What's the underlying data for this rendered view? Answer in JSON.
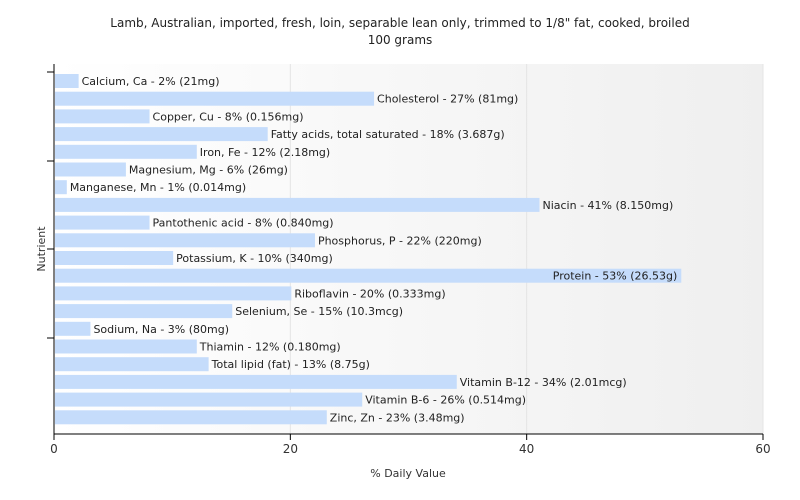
{
  "chart_data": {
    "type": "bar",
    "orientation": "horizontal",
    "title": "Lamb, Australian, imported, fresh, loin, separable lean only, trimmed to 1/8\" fat, cooked, broiled",
    "subtitle": "100 grams",
    "xlabel": "% Daily Value",
    "ylabel": "Nutrient",
    "xlim": [
      0,
      60
    ],
    "xticks": [
      "0",
      "20",
      "40",
      "60"
    ],
    "grid": true,
    "bar_color": "#c5dcfb",
    "categories": [
      "Calcium, Ca",
      "Cholesterol",
      "Copper, Cu",
      "Fatty acids, total saturated",
      "Iron, Fe",
      "Magnesium, Mg",
      "Manganese, Mn",
      "Niacin",
      "Pantothenic acid",
      "Phosphorus, P",
      "Potassium, K",
      "Protein",
      "Riboflavin",
      "Selenium, Se",
      "Sodium, Na",
      "Thiamin",
      "Total lipid (fat)",
      "Vitamin B-12",
      "Vitamin B-6",
      "Zinc, Zn"
    ],
    "values": [
      2,
      27,
      8,
      18,
      12,
      6,
      1,
      41,
      8,
      22,
      10,
      53,
      20,
      15,
      3,
      12,
      13,
      34,
      26,
      23
    ],
    "labels": [
      "Calcium, Ca - 2% (21mg)",
      "Cholesterol - 27% (81mg)",
      "Copper, Cu - 8% (0.156mg)",
      "Fatty acids, total saturated - 18% (3.687g)",
      "Iron, Fe - 12% (2.18mg)",
      "Magnesium, Mg - 6% (26mg)",
      "Manganese, Mn - 1% (0.014mg)",
      "Niacin - 41% (8.150mg)",
      "Pantothenic acid - 8% (0.840mg)",
      "Phosphorus, P - 22% (220mg)",
      "Potassium, K - 10% (340mg)",
      "Protein - 53% (26.53g)",
      "Riboflavin - 20% (0.333mg)",
      "Selenium, Se - 15% (10.3mcg)",
      "Sodium, Na - 3% (80mg)",
      "Thiamin - 12% (0.180mg)",
      "Total lipid (fat) - 13% (8.75g)",
      "Vitamin B-12 - 34% (2.01mcg)",
      "Vitamin B-6 - 26% (0.514mg)",
      "Zinc, Zn - 23% (3.48mg)"
    ]
  }
}
